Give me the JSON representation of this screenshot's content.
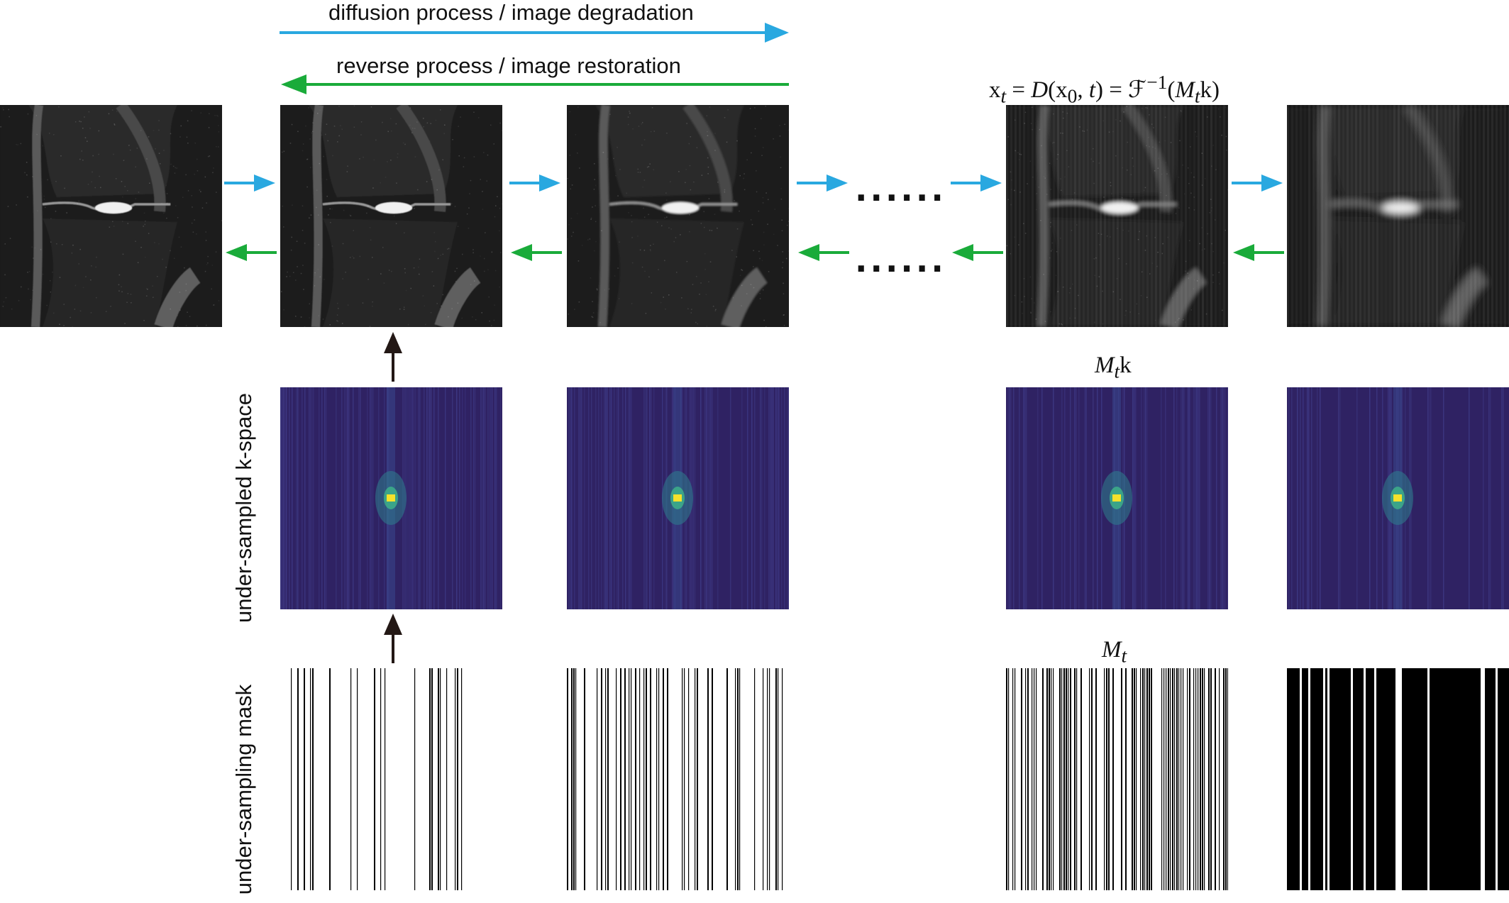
{
  "header": {
    "forward_label": "diffusion process / image degradation",
    "reverse_label": "reverse process / image restoration"
  },
  "formulas": {
    "xt_equation": "x_t = D(x_0, t) = F^{-1}(M_t k)",
    "xt_lhs": "x",
    "xt_sub": "t",
    "xt_eq1": " = ",
    "xt_D": "D",
    "xt_args": "(x",
    "xt_sub0": "0",
    "xt_comma": ", ",
    "xt_t": "t",
    "xt_close": ") = ",
    "xt_F": "ℱ",
    "xt_sup": "−1",
    "xt_paren": "(",
    "xt_M": "M",
    "xt_Msub": "t",
    "xt_k": "k)",
    "mtk_M": "M",
    "mtk_sub": "t",
    "mtk_k": "k",
    "mt_M": "M",
    "mt_sub": "t"
  },
  "row_labels": {
    "kspace": "under-sampled k-space",
    "mask": "under-sampling mask"
  },
  "ellipsis": {
    "top": "......",
    "bottom": "......"
  },
  "colors": {
    "forward_arrow": "#29a8e0",
    "reverse_arrow": "#1aab3a",
    "up_arrow": "#231815",
    "kspace_bg": "#2f2263",
    "kspace_center": "#f5e12b"
  },
  "panels": {
    "mri": [
      "mri-image-x0",
      "mri-image-x1",
      "mri-image-x2",
      "mri-image-xt",
      "mri-image-xT"
    ],
    "kspace": [
      "kspace-x1",
      "kspace-x2",
      "kspace-xt",
      "kspace-xT"
    ],
    "mask": [
      "mask-x1",
      "mask-x2",
      "mask-xt",
      "mask-xT"
    ]
  }
}
